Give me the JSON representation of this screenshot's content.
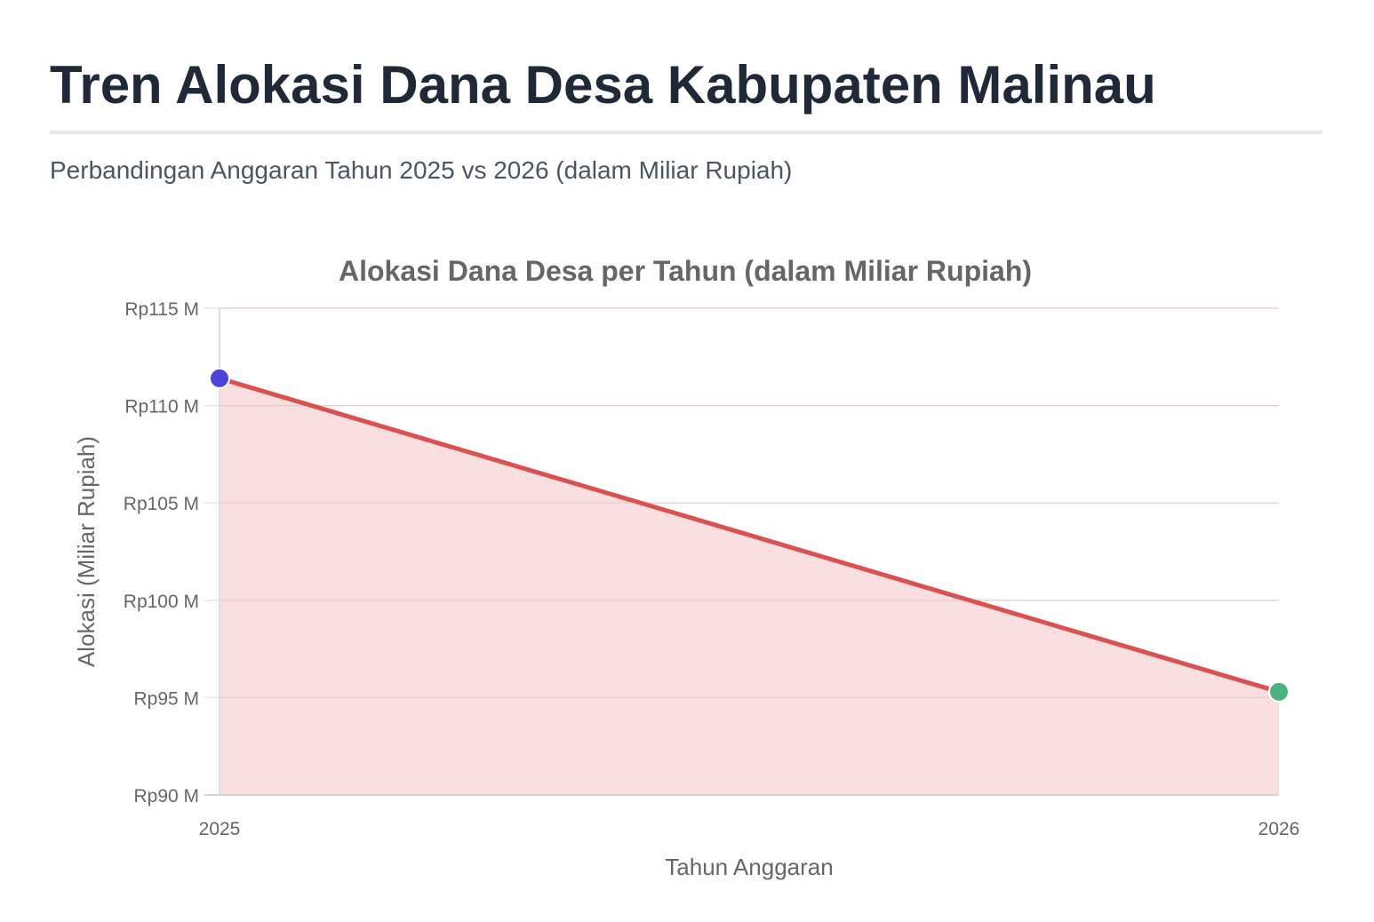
{
  "header": {
    "title": "Tren Alokasi Dana Desa Kabupaten Malinau",
    "subtitle": "Perbandingan Anggaran Tahun 2025 vs 2026 (dalam Miliar Rupiah)"
  },
  "colors": {
    "title": "#1f2937",
    "subtitle": "#4b5563",
    "line": "#dc5050",
    "fill": "#f8dcdc",
    "point_2025": "#4b45dd",
    "point_2026": "#4bb37f",
    "grid": "#e5e5e5",
    "axis_text": "#666666"
  },
  "chart_data": {
    "type": "line",
    "title": "Alokasi Dana Desa per Tahun (dalam Miliar Rupiah)",
    "xlabel": "Tahun Anggaran",
    "ylabel": "Alokasi (Miliar Rupiah)",
    "categories": [
      "2025",
      "2026"
    ],
    "series": [
      {
        "name": "Alokasi Dana Desa",
        "values": [
          111.4,
          95.3
        ],
        "fill": true
      }
    ],
    "ylim": [
      90,
      115
    ],
    "yticks": [
      90,
      95,
      100,
      105,
      110,
      115
    ],
    "ytick_labels": [
      "Rp90 M",
      "Rp95 M",
      "Rp100 M",
      "Rp105 M",
      "Rp110 M",
      "Rp115 M"
    ],
    "grid": true,
    "legend": "none"
  }
}
